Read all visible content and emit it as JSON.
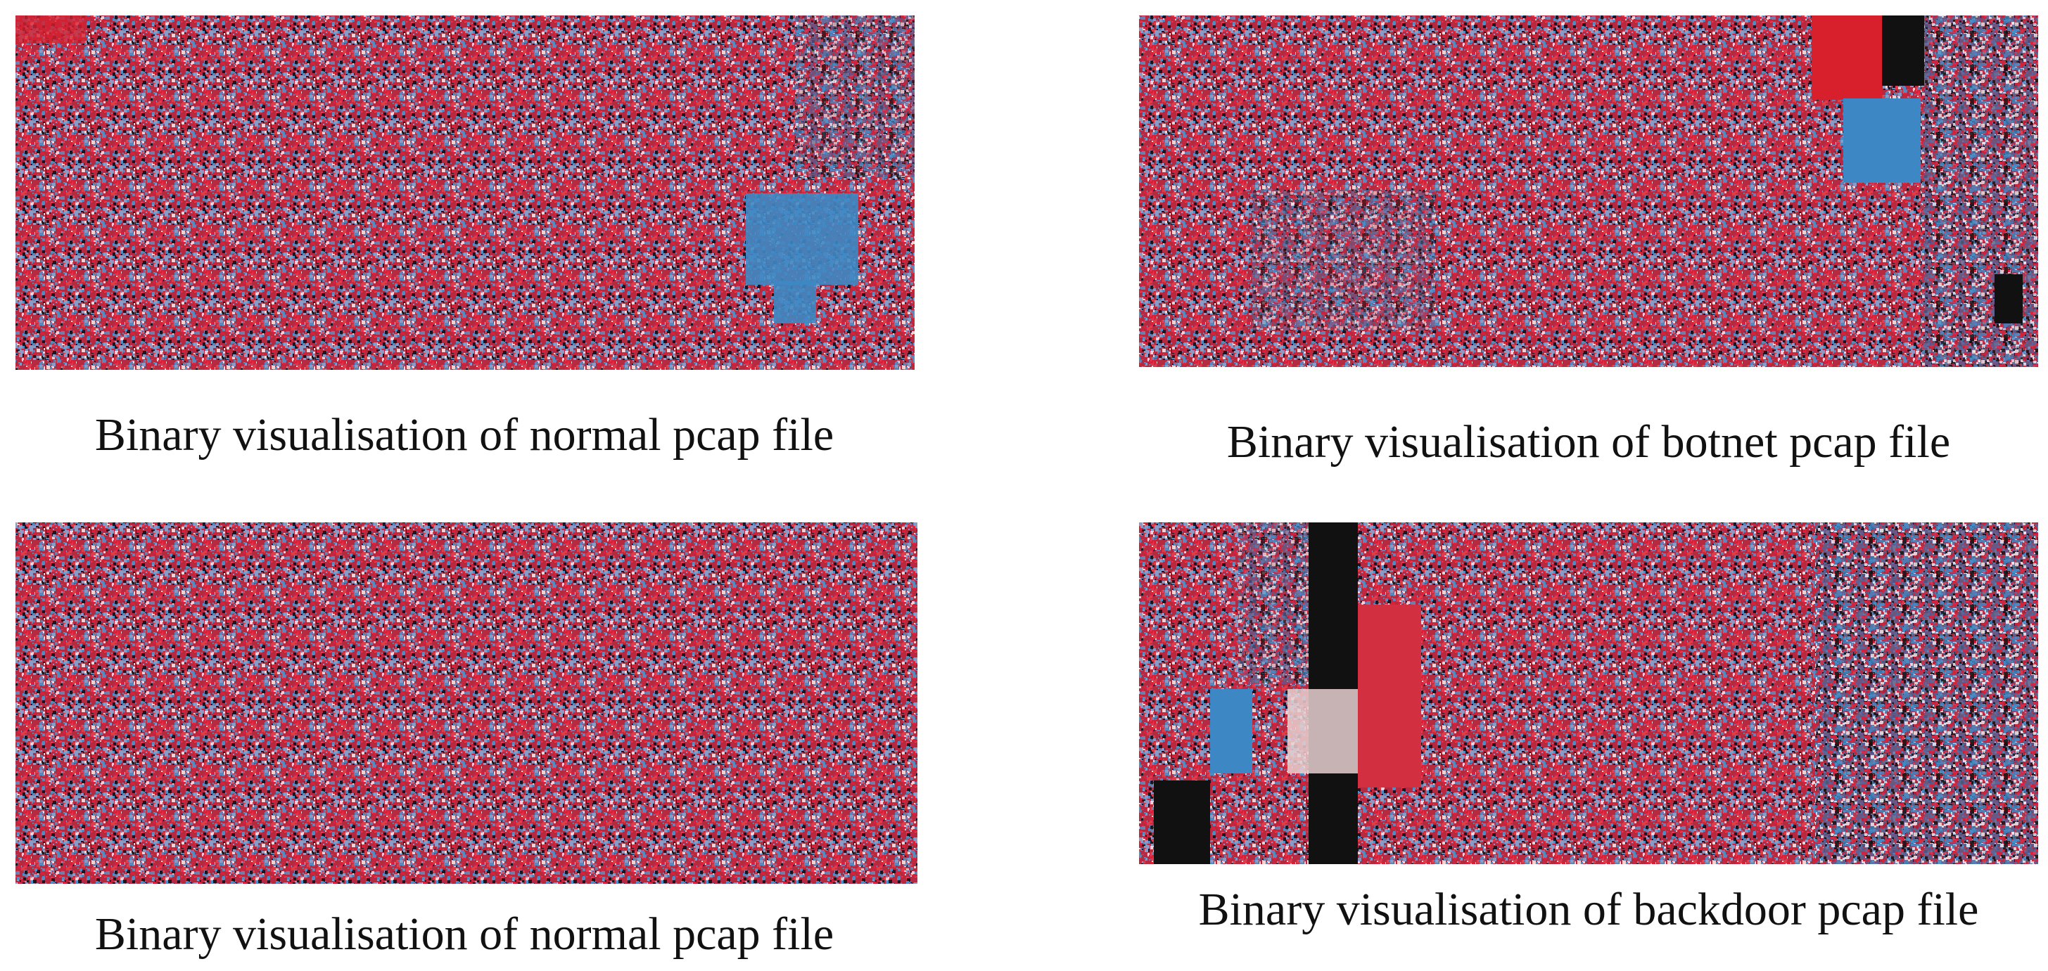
{
  "panels": [
    {
      "caption": "Binary visualisation of normal pcap file"
    },
    {
      "caption": "Binary visualisation of botnet pcap file"
    },
    {
      "caption": "Binary visualisation of normal pcap file"
    },
    {
      "caption": "Binary visualisation of backdoor pcap file"
    }
  ]
}
